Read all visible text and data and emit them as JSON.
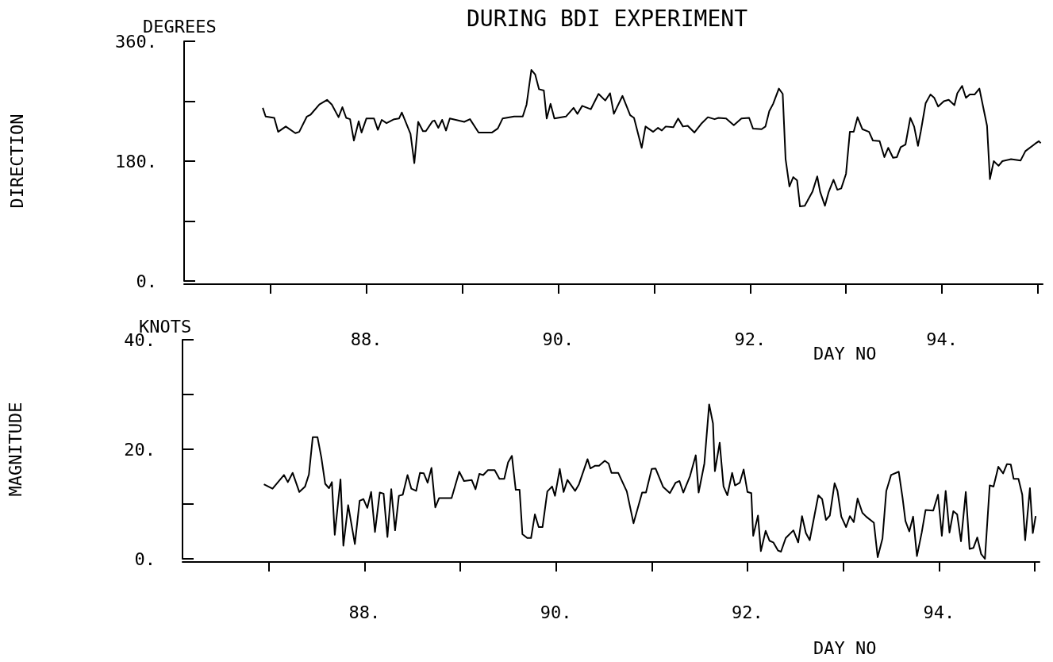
{
  "chart_data": [
    {
      "type": "line",
      "title": "DURING BDI EXPERIMENT",
      "ylabel": "DIRECTION",
      "xlabel": "DAY NO",
      "annotations": [
        "DEGREES"
      ],
      "color": "#000000",
      "x": [
        86.92,
        86.95,
        87.04,
        87.08,
        87.16,
        87.26,
        87.3,
        87.38,
        87.42,
        87.51,
        87.59,
        87.64,
        87.71,
        87.75,
        87.79,
        87.83,
        87.87,
        87.92,
        87.95,
        88.0,
        88.08,
        88.12,
        88.16,
        88.21,
        88.29,
        88.34,
        88.37,
        88.46,
        88.5,
        88.54,
        88.59,
        88.62,
        88.69,
        88.71,
        88.75,
        88.79,
        88.83,
        88.87,
        89.02,
        89.08,
        89.17,
        89.31,
        89.37,
        89.42,
        89.54,
        89.63,
        89.67,
        89.72,
        89.76,
        89.8,
        89.85,
        89.88,
        89.92,
        89.96,
        90.08,
        90.16,
        90.2,
        90.25,
        90.34,
        90.42,
        90.49,
        90.54,
        90.58,
        90.67,
        90.75,
        90.79,
        90.87,
        90.91,
        90.99,
        91.04,
        91.08,
        91.12,
        91.2,
        91.25,
        91.3,
        91.35,
        91.42,
        91.49,
        91.56,
        91.63,
        91.67,
        91.75,
        91.83,
        91.91,
        91.99,
        92.03,
        92.12,
        92.16,
        92.2,
        92.24,
        92.3,
        92.34,
        92.37,
        92.41,
        92.45,
        92.49,
        92.52,
        92.57,
        92.65,
        92.7,
        92.73,
        92.78,
        92.82,
        92.87,
        92.91,
        92.95,
        93.0,
        93.04,
        93.08,
        93.12,
        93.17,
        93.24,
        93.28,
        93.35,
        93.4,
        93.44,
        93.49,
        93.53,
        93.57,
        93.62,
        93.67,
        93.71,
        93.75,
        93.78,
        93.83,
        93.88,
        93.92,
        93.96,
        94.02,
        94.07,
        94.13,
        94.16,
        94.21,
        94.25,
        94.29,
        94.34,
        94.39,
        94.47,
        94.5,
        94.54,
        94.59,
        94.63,
        94.72,
        94.82,
        94.87,
        94.97,
        95.01,
        95.03
      ],
      "values": [
        260,
        247,
        245,
        224,
        232,
        222,
        224,
        247,
        250,
        265,
        272,
        265,
        246,
        261,
        245,
        243,
        211,
        240,
        223,
        244,
        244,
        227,
        242,
        237,
        243,
        244,
        253,
        221,
        177,
        239,
        225,
        225,
        240,
        241,
        230,
        242,
        226,
        244,
        239,
        243,
        223,
        223,
        229,
        244,
        247,
        247,
        265,
        317,
        310,
        288,
        286,
        244,
        266,
        244,
        247,
        260,
        251,
        263,
        258,
        281,
        271,
        282,
        251,
        278,
        249,
        245,
        200,
        232,
        224,
        230,
        226,
        232,
        231,
        244,
        232,
        233,
        223,
        236,
        246,
        243,
        245,
        244,
        234,
        244,
        245,
        229,
        228,
        232,
        255,
        266,
        289,
        281,
        183,
        142,
        156,
        151,
        112,
        113,
        134,
        157,
        134,
        113,
        134,
        152,
        137,
        139,
        161,
        224,
        224,
        246,
        228,
        224,
        211,
        210,
        186,
        200,
        185,
        186,
        201,
        205,
        245,
        232,
        203,
        225,
        267,
        280,
        275,
        262,
        270,
        272,
        264,
        282,
        293,
        275,
        280,
        280,
        289,
        233,
        153,
        180,
        173,
        180,
        183,
        181,
        195,
        206,
        210,
        207
      ],
      "xlim": [
        86.1,
        95.05
      ],
      "xticks": [
        {
          "value": 87,
          "label": null
        },
        {
          "value": 88,
          "label": "88."
        },
        {
          "value": 89,
          "label": null
        },
        {
          "value": 90,
          "label": "90."
        },
        {
          "value": 91,
          "label": null
        },
        {
          "value": 92,
          "label": "92."
        },
        {
          "value": 93,
          "label": null
        },
        {
          "value": 94,
          "label": "94."
        },
        {
          "value": 95,
          "label": null
        }
      ],
      "ylim": [
        0,
        360
      ],
      "yticks": [
        {
          "value": 0,
          "label": "0."
        },
        {
          "value": 90,
          "label": null
        },
        {
          "value": 180,
          "label": "180."
        },
        {
          "value": 270,
          "label": null
        },
        {
          "value": 360,
          "label": "360."
        }
      ]
    },
    {
      "type": "line",
      "ylabel": "MAGNITUDE",
      "xlabel": "DAY NO",
      "annotations": [
        "KNOTS"
      ],
      "color": "#000000",
      "x": [
        86.95,
        87.04,
        87.16,
        87.2,
        87.25,
        87.32,
        87.38,
        87.42,
        87.46,
        87.51,
        87.55,
        87.59,
        87.63,
        87.66,
        87.69,
        87.75,
        87.78,
        87.83,
        87.9,
        87.95,
        87.99,
        88.03,
        88.07,
        88.11,
        88.16,
        88.2,
        88.24,
        88.28,
        88.32,
        88.36,
        88.4,
        88.45,
        88.49,
        88.54,
        88.58,
        88.62,
        88.66,
        88.7,
        88.74,
        88.78,
        88.91,
        88.99,
        89.04,
        89.12,
        89.16,
        89.2,
        89.24,
        89.29,
        89.36,
        89.41,
        89.46,
        89.5,
        89.54,
        89.58,
        89.62,
        89.65,
        89.7,
        89.74,
        89.78,
        89.82,
        89.86,
        89.91,
        89.96,
        89.99,
        90.04,
        90.08,
        90.12,
        90.2,
        90.24,
        90.33,
        90.36,
        90.41,
        90.45,
        90.51,
        90.55,
        90.58,
        90.65,
        90.74,
        90.81,
        90.9,
        90.94,
        91.0,
        91.04,
        91.08,
        91.12,
        91.19,
        91.25,
        91.29,
        91.33,
        91.4,
        91.46,
        91.49,
        91.55,
        91.6,
        91.64,
        91.66,
        91.71,
        91.75,
        91.79,
        91.84,
        91.87,
        91.92,
        91.96,
        92.0,
        92.04,
        92.06,
        92.11,
        92.14,
        92.19,
        92.23,
        92.27,
        92.32,
        92.35,
        92.4,
        92.48,
        92.53,
        92.57,
        92.61,
        92.65,
        92.74,
        92.78,
        92.82,
        92.86,
        92.91,
        92.94,
        92.98,
        93.03,
        93.07,
        93.11,
        93.15,
        93.2,
        93.24,
        93.32,
        93.36,
        93.41,
        93.45,
        93.5,
        93.58,
        93.62,
        93.65,
        93.69,
        93.73,
        93.77,
        93.82,
        93.86,
        93.94,
        93.99,
        94.03,
        94.07,
        94.11,
        94.15,
        94.19,
        94.23,
        94.28,
        94.32,
        94.36,
        94.4,
        94.44,
        94.48,
        94.53,
        94.57,
        94.62,
        94.67,
        94.71,
        94.75,
        94.78,
        94.83,
        94.87,
        94.9,
        94.95,
        94.98,
        95.01
      ],
      "values": [
        13.6,
        12.8,
        15.3,
        14,
        15.7,
        12.2,
        13.2,
        15.4,
        22.2,
        22.2,
        18.5,
        13.7,
        12.9,
        14,
        4.4,
        14.5,
        2.4,
        9.8,
        2.7,
        10.6,
        10.9,
        9.3,
        12.2,
        4.9,
        12.1,
        11.9,
        4,
        12.7,
        5.2,
        11.5,
        11.7,
        15.3,
        12.8,
        12.4,
        15.7,
        15.6,
        13.9,
        16.6,
        9.4,
        11.1,
        11.1,
        15.9,
        14.2,
        14.4,
        12.7,
        15.5,
        15.3,
        16.2,
        16.2,
        14.6,
        14.6,
        17.6,
        18.8,
        12.6,
        12.6,
        4.5,
        3.8,
        3.8,
        8.1,
        5.8,
        5.8,
        12.3,
        13.2,
        11.5,
        16.4,
        12.2,
        14.4,
        12.4,
        13.6,
        18.2,
        16.5,
        17,
        17,
        17.9,
        17.4,
        15.7,
        15.7,
        12.3,
        6.5,
        12.1,
        12.1,
        16.4,
        16.5,
        14.8,
        13.1,
        12,
        13.9,
        14.2,
        12.1,
        15.1,
        18.9,
        12.1,
        17.4,
        28.2,
        24.7,
        16,
        21.2,
        13.2,
        11.6,
        15.7,
        13.4,
        13.9,
        16.3,
        12.2,
        12,
        4.2,
        7.9,
        1.4,
        5.1,
        3.3,
        3,
        1.5,
        1.3,
        3.8,
        5.2,
        3,
        7.8,
        4.7,
        3.4,
        11.6,
        10.9,
        7.1,
        7.9,
        13.8,
        12.4,
        7.7,
        5.8,
        7.8,
        6.7,
        11,
        8.4,
        7.7,
        6.6,
        0.3,
        3.7,
        12.4,
        15.3,
        15.9,
        11.1,
        6.9,
        5,
        7.7,
        0.5,
        4.8,
        8.9,
        8.8,
        11.7,
        4.2,
        12.4,
        4.8,
        8.7,
        8.1,
        3.2,
        12.2,
        1.8,
        2,
        3.9,
        0.9,
        0,
        13.4,
        13.2,
        16.8,
        15.6,
        17.3,
        17.2,
        14.6,
        14.6,
        11.7,
        3.4,
        12.9,
        4.7,
        7.8
      ],
      "xlim": [
        86.1,
        95.05
      ],
      "xticks": [
        {
          "value": 87,
          "label": null
        },
        {
          "value": 88,
          "label": "88."
        },
        {
          "value": 89,
          "label": null
        },
        {
          "value": 90,
          "label": "90."
        },
        {
          "value": 91,
          "label": null
        },
        {
          "value": 92,
          "label": "92."
        },
        {
          "value": 93,
          "label": null
        },
        {
          "value": 94,
          "label": "94."
        },
        {
          "value": 95,
          "label": null
        }
      ],
      "ylim": [
        0,
        40
      ],
      "yticks": [
        {
          "value": 0,
          "label": "0."
        },
        {
          "value": 10,
          "label": null
        },
        {
          "value": 20,
          "label": "20."
        },
        {
          "value": 30,
          "label": null
        },
        {
          "value": 40,
          "label": "40."
        }
      ]
    }
  ]
}
